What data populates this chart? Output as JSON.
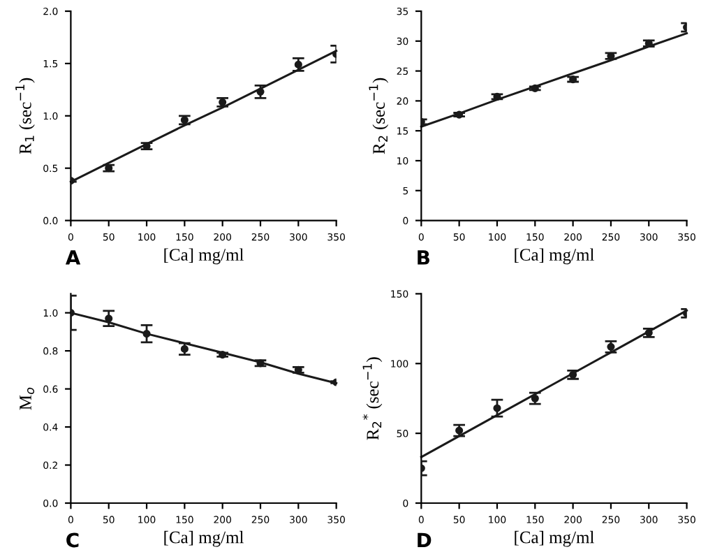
{
  "chart_data": [
    {
      "type": "scatter",
      "xlabel": "[Ca] mg/ml",
      "ylabel": "R$_{1}$ (sec$^{−1}$)",
      "annotations": [
        "A"
      ],
      "x": [
        0,
        50,
        100,
        150,
        200,
        250,
        300,
        350
      ],
      "xlim": [
        0,
        350
      ],
      "xticks": [
        0,
        50,
        100,
        150,
        200,
        250,
        300,
        350
      ],
      "ylim": [
        0,
        2
      ],
      "yticks": [
        {
          "value": 0,
          "label": "0.0"
        },
        {
          "value": 0.5,
          "label": "0.5"
        },
        {
          "value": 1,
          "label": "1.0"
        },
        {
          "value": 1.5,
          "label": "1.5"
        },
        {
          "value": 2,
          "label": "2.0"
        }
      ],
      "grid": false,
      "legend": false,
      "series": [
        {
          "marker": "circle",
          "color": "#1a1a1a",
          "values": [
            0.38,
            0.5,
            0.71,
            0.96,
            1.13,
            1.23,
            1.49,
            1.59
          ],
          "errors": [
            0.01,
            0.03,
            0.03,
            0.04,
            0.04,
            0.06,
            0.06,
            0.08
          ]
        },
        {
          "type": "line",
          "marker": "none",
          "color": "#1a1a1a",
          "values": [
            0.37,
            0.55,
            0.73,
            0.91,
            1.08,
            1.26,
            1.44,
            1.62
          ]
        }
      ]
    },
    {
      "type": "scatter",
      "xlabel": "[Ca] mg/ml",
      "ylabel": "R$_{2}$ (sec$^{−1}$)",
      "annotations": [
        "B"
      ],
      "x": [
        0,
        50,
        100,
        150,
        200,
        250,
        300,
        350
      ],
      "xlim": [
        0,
        350
      ],
      "xticks": [
        0,
        50,
        100,
        150,
        200,
        250,
        300,
        350
      ],
      "ylim": [
        0,
        35
      ],
      "yticks": [
        0,
        5,
        10,
        15,
        20,
        25,
        30,
        35
      ],
      "grid": false,
      "legend": false,
      "series": [
        {
          "marker": "circle",
          "color": "#1a1a1a",
          "values": [
            16.5,
            17.7,
            20.7,
            22.1,
            23.6,
            27.5,
            29.6,
            32.3
          ],
          "errors": [
            0.4,
            0.3,
            0.4,
            0.3,
            0.4,
            0.5,
            0.5,
            0.7
          ]
        },
        {
          "type": "line",
          "marker": "none",
          "color": "#1a1a1a",
          "values": [
            15.7,
            17.9,
            20.2,
            22.4,
            24.6,
            26.8,
            29.1,
            31.3
          ]
        }
      ]
    },
    {
      "type": "scatter",
      "xlabel": "[Ca] mg/ml",
      "ylabel": "M$_{o}$",
      "annotations": [
        "C"
      ],
      "x": [
        0,
        50,
        100,
        150,
        200,
        250,
        300,
        350
      ],
      "xlim": [
        0,
        350
      ],
      "xticks": [
        0,
        50,
        100,
        150,
        200,
        250,
        300,
        350
      ],
      "ylim": [
        0,
        1.1
      ],
      "yticks": [
        {
          "value": 0,
          "label": "0.0"
        },
        {
          "value": 0.2,
          "label": "0.2"
        },
        {
          "value": 0.4,
          "label": "0.4"
        },
        {
          "value": 0.6,
          "label": "0.6"
        },
        {
          "value": 0.8,
          "label": "0.8"
        },
        {
          "value": 1,
          "label": "1.0"
        }
      ],
      "grid": false,
      "legend": false,
      "series": [
        {
          "marker": "circle",
          "color": "#1a1a1a",
          "values": [
            1.0,
            0.97,
            0.89,
            0.81,
            0.78,
            0.735,
            0.7,
            0.635
          ],
          "errors": [
            0.09,
            0.04,
            0.045,
            0.03,
            0.01,
            0.015,
            0.015,
            0.005
          ]
        },
        {
          "type": "line",
          "marker": "none",
          "color": "#1a1a1a",
          "values": [
            1.0,
            0.95,
            0.89,
            0.84,
            0.79,
            0.74,
            0.68,
            0.63
          ]
        }
      ]
    },
    {
      "type": "scatter",
      "xlabel": "[Ca] mg/ml",
      "ylabel": "R$_{2}$$^{*}$ (sec$^{−1}$)",
      "annotations": [
        "D"
      ],
      "x": [
        0,
        50,
        100,
        150,
        200,
        250,
        300,
        350
      ],
      "xlim": [
        0,
        350
      ],
      "xticks": [
        0,
        50,
        100,
        150,
        200,
        250,
        300,
        350
      ],
      "ylim": [
        0,
        150
      ],
      "yticks": [
        0,
        50,
        100,
        150
      ],
      "grid": false,
      "legend": false,
      "series": [
        {
          "marker": "circle",
          "color": "#1a1a1a",
          "values": [
            25,
            52,
            68,
            75,
            92,
            112,
            122,
            136
          ],
          "errors": [
            5,
            4,
            6,
            4,
            3,
            4,
            3,
            3
          ]
        },
        {
          "type": "line",
          "marker": "none",
          "color": "#1a1a1a",
          "values": [
            33,
            48,
            63,
            78,
            93,
            108,
            123,
            138
          ]
        }
      ]
    }
  ]
}
